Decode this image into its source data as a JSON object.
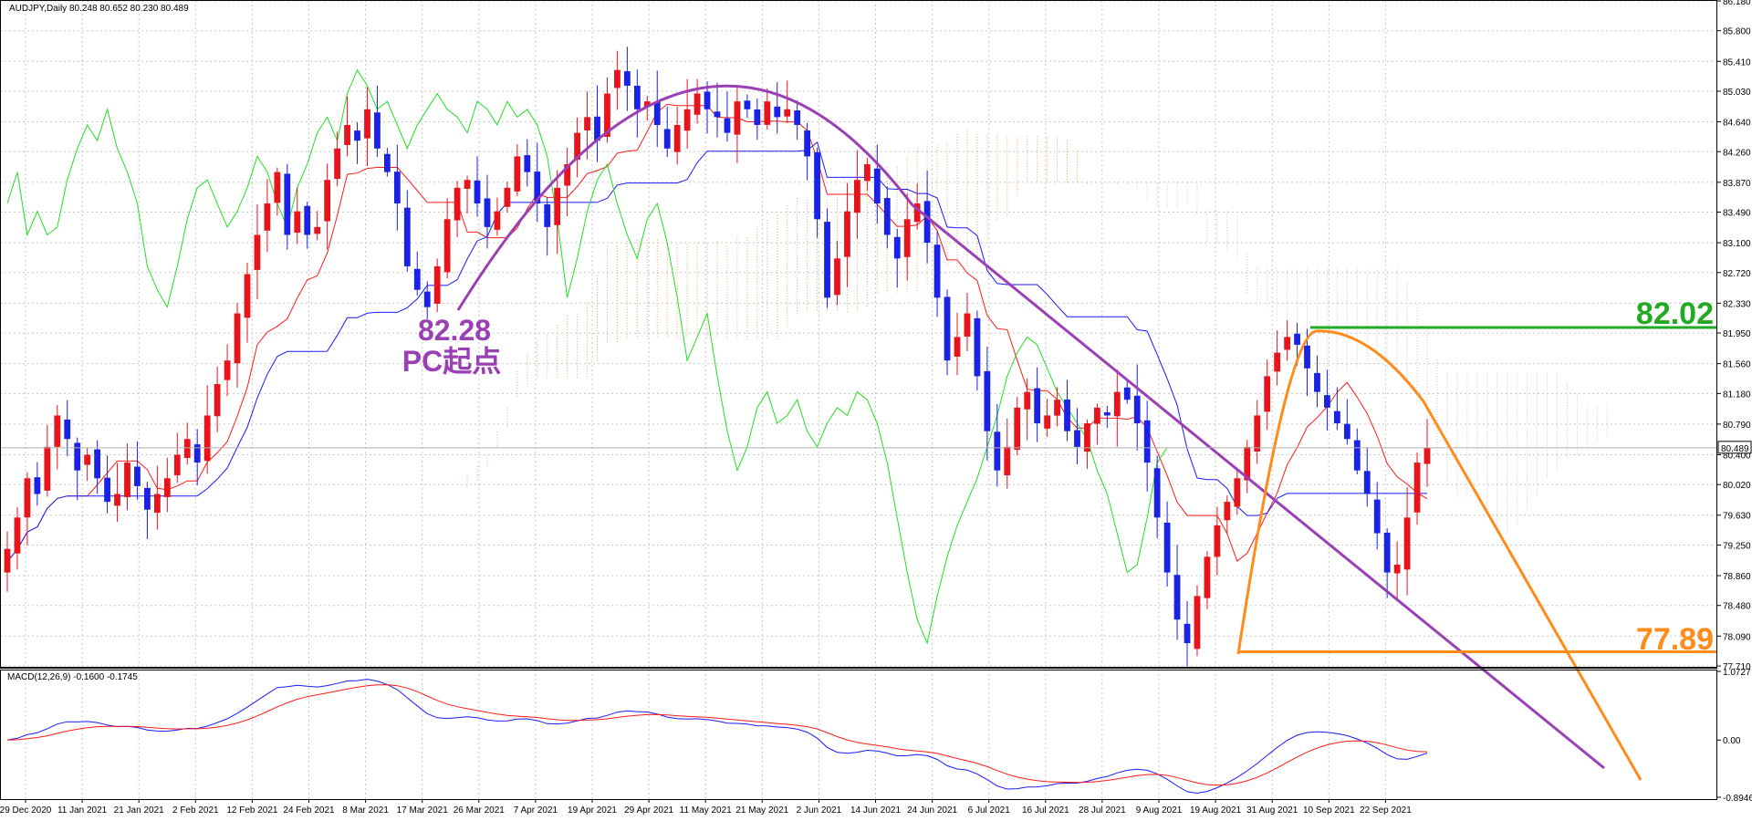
{
  "chart_data": {
    "type": "candlestick",
    "symbol_header": "AUDJPY,Daily  80.248 80.652 80.230 80.489",
    "price_axis": {
      "range": [
        77.71,
        86.18
      ],
      "ticks": [
        "86.180",
        "85.800",
        "85.410",
        "85.030",
        "84.640",
        "84.260",
        "83.870",
        "83.490",
        "83.100",
        "82.720",
        "82.330",
        "81.950",
        "81.560",
        "81.180",
        "80.790",
        "80.400",
        "80.020",
        "79.630",
        "79.250",
        "78.860",
        "78.480",
        "78.090",
        "77.710"
      ],
      "current_price": 80.489,
      "current_price_label": "80.489"
    },
    "date_axis": {
      "labels": [
        "29 Dec 2020",
        "11 Jan 2021",
        "21 Jan 2021",
        "2 Feb 2021",
        "12 Feb 2021",
        "24 Feb 2021",
        "8 Mar 2021",
        "17 Mar 2021",
        "26 Mar 2021",
        "7 Apr 2021",
        "19 Apr 2021",
        "29 Apr 2021",
        "11 May 2021",
        "21 May 2021",
        "2 Jun 2021",
        "14 Jun 2021",
        "24 Jun 2021",
        "6 Jul 2021",
        "16 Jul 2021",
        "28 Jul 2021",
        "9 Aug 2021",
        "19 Aug 2021",
        "31 Aug 2021",
        "10 Sep 2021",
        "22 Sep 2021"
      ]
    },
    "candles_close": [
      79.2,
      79.6,
      80.1,
      79.9,
      80.5,
      80.9,
      80.6,
      80.2,
      80.4,
      80.1,
      79.8,
      79.9,
      80.3,
      80.0,
      79.7,
      79.9,
      80.1,
      80.4,
      80.6,
      80.3,
      80.9,
      81.3,
      81.6,
      82.2,
      82.7,
      83.2,
      83.6,
      84.0,
      83.2,
      83.5,
      83.2,
      83.3,
      83.9,
      84.3,
      84.6,
      84.4,
      84.8,
      84.3,
      84.0,
      83.6,
      82.8,
      82.5,
      82.28,
      82.8,
      83.4,
      83.8,
      83.9,
      83.6,
      83.3,
      83.5,
      83.8,
      84.2,
      84.0,
      83.6,
      83.3,
      83.8,
      84.1,
      84.5,
      84.7,
      84.4,
      85.0,
      85.3,
      85.1,
      84.8,
      84.9,
      84.6,
      84.3,
      84.6,
      84.8,
      85.0,
      84.8,
      84.7,
      84.5,
      84.9,
      84.8,
      84.6,
      84.9,
      84.7,
      84.8,
      84.6,
      84.2,
      83.4,
      82.4,
      82.9,
      83.5,
      83.9,
      84.1,
      83.6,
      83.2,
      82.9,
      83.4,
      83.6,
      83.1,
      82.4,
      81.6,
      81.9,
      82.2,
      81.4,
      80.7,
      80.2,
      80.5,
      81.0,
      81.2,
      80.8,
      80.9,
      81.1,
      80.7,
      80.5,
      80.8,
      81.0,
      80.9,
      81.2,
      81.1,
      80.8,
      80.3,
      79.6,
      78.9,
      78.3,
      78.0,
      78.6,
      79.1,
      79.5,
      79.8,
      80.1,
      80.5,
      80.9,
      81.4,
      81.7,
      81.9,
      81.8,
      81.5,
      81.2,
      81.0,
      80.8,
      80.6,
      80.2,
      79.9,
      79.4,
      78.9,
      79.0,
      79.6,
      80.3,
      80.489
    ],
    "indicator": {
      "header": "MACD(12,26,9) -0.1600 -0.1745",
      "range": [
        -0.8946,
        1.0727
      ],
      "ticks": [
        "1.0727",
        "0.00",
        "-0.8946"
      ]
    },
    "annotations": [
      {
        "label": "82.28",
        "value": 82.28
      },
      {
        "label": "PC起点"
      },
      {
        "label": "82.02",
        "value": 82.02,
        "color": "#22aa22"
      },
      {
        "label": "77.89",
        "value": 77.89,
        "color": "#ff8c1a"
      }
    ],
    "colors": {
      "up_candle": "#e8141c",
      "down_candle": "#1a22e6",
      "tenkan": "#ff1a1a",
      "kijun": "#1a1aff",
      "chikou": "#22e022",
      "kumo": "#f3a66a",
      "curve": "#9b3fb5",
      "orange": "#ff8c1a",
      "green": "#22aa22"
    }
  }
}
